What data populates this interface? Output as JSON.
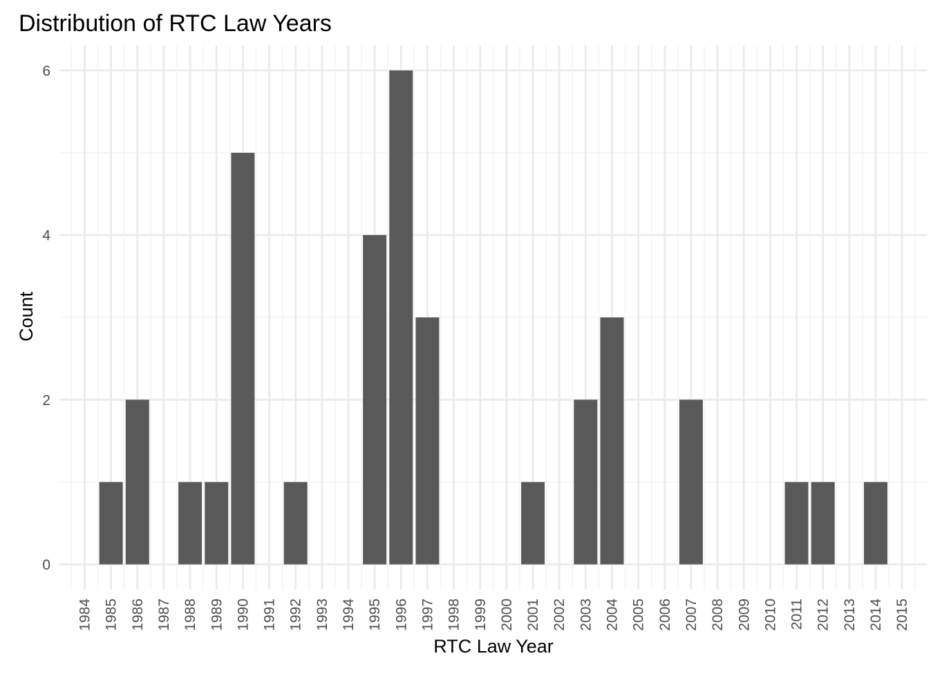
{
  "chart_data": {
    "type": "bar",
    "title": "Distribution of RTC Law Years",
    "xlabel": "RTC Law Year",
    "ylabel": "Count",
    "categories": [
      "1984",
      "1985",
      "1986",
      "1987",
      "1988",
      "1989",
      "1990",
      "1991",
      "1992",
      "1993",
      "1994",
      "1995",
      "1996",
      "1997",
      "1998",
      "1999",
      "2000",
      "2001",
      "2002",
      "2003",
      "2004",
      "2005",
      "2006",
      "2007",
      "2008",
      "2009",
      "2010",
      "2011",
      "2012",
      "2013",
      "2014",
      "2015"
    ],
    "values": [
      0,
      1,
      2,
      0,
      1,
      1,
      5,
      0,
      1,
      0,
      0,
      4,
      6,
      3,
      0,
      0,
      0,
      1,
      0,
      2,
      3,
      0,
      0,
      2,
      0,
      0,
      0,
      1,
      1,
      0,
      1,
      0
    ],
    "ylim": [
      -0.6,
      6.3
    ],
    "yticks": [
      "0",
      "2",
      "4",
      "6"
    ],
    "grid": true,
    "bar_color": "#595959",
    "grid_color": "#ebebeb"
  }
}
